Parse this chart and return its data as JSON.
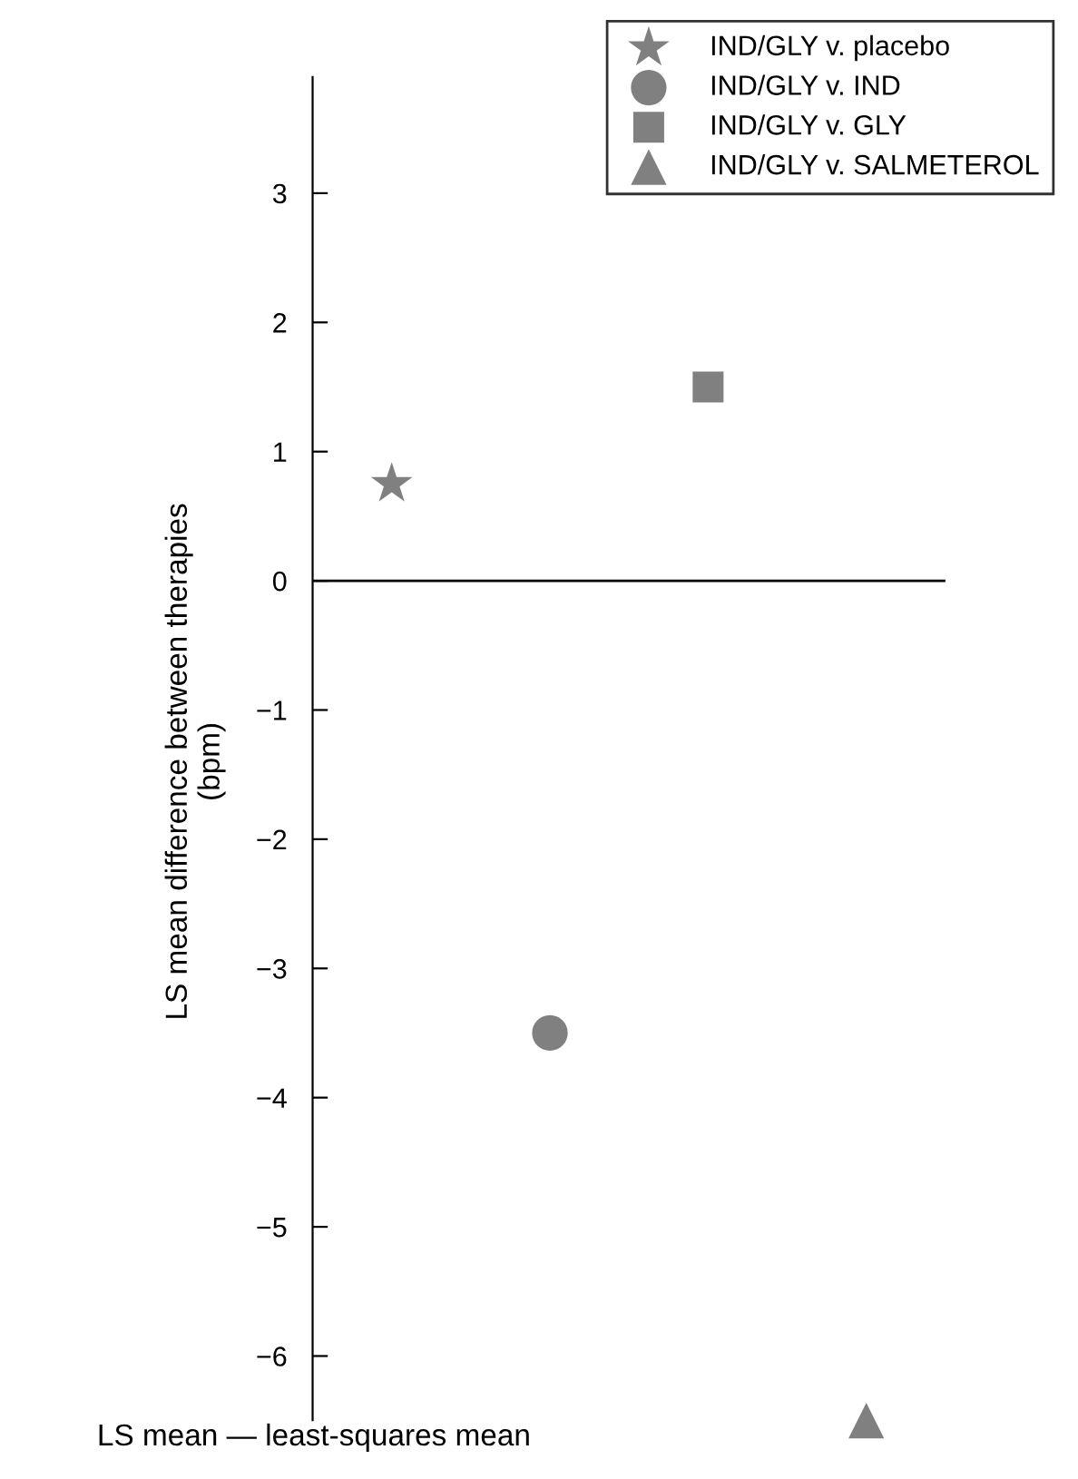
{
  "chart_data": {
    "type": "scatter",
    "ylabel": "LS mean difference between therapies\n(bpm)",
    "categories": [
      null,
      null,
      null,
      null
    ],
    "series": [
      {
        "name": "IND/GLY v. placebo",
        "color": "#808080",
        "marker": "star",
        "values": [
          0.75,
          null,
          null,
          null
        ]
      },
      {
        "name": "IND/GLY v. IND",
        "color": "#808080",
        "marker": "circle",
        "values": [
          null,
          -3.5,
          null,
          null
        ]
      },
      {
        "name": "IND/GLY v. GLY",
        "color": "#808080",
        "marker": "square",
        "values": [
          null,
          null,
          1.5,
          null
        ]
      },
      {
        "name": "IND/GLY v. SALMETEROL",
        "color": "#808080",
        "marker": "triangle",
        "values": [
          null,
          null,
          null,
          -6.5
        ]
      }
    ],
    "ylim": [
      -6.7,
      3.9
    ],
    "yticks": [
      -6,
      -5,
      -4,
      -3,
      -2,
      -1,
      0,
      1,
      2,
      3
    ],
    "ref_lines": [
      {
        "axis": "y",
        "value": 0
      }
    ],
    "legend": "top right",
    "grid": false,
    "tick_labels": "y",
    "annotations": [
      "LS mean — least-squares mean"
    ]
  }
}
